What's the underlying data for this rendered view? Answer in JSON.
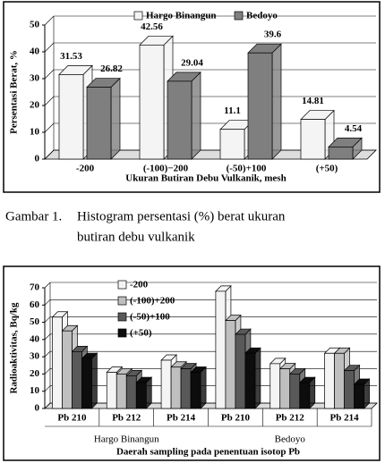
{
  "chart_data": [
    {
      "type": "bar",
      "ylabel": "Persentasi Berat, %",
      "xlabel": "Ukuran Butiran Debu Vulkanik, mesh",
      "categories": [
        "-200",
        "(-100)−200",
        "(-50)+100",
        "(+50)"
      ],
      "series": [
        {
          "name": "Hargo Binangun",
          "color": "#f4f4f4",
          "values": [
            31.53,
            42.56,
            11.1,
            14.81
          ]
        },
        {
          "name": "Bedoyo",
          "color": "#7f7f7f",
          "values": [
            26.82,
            29.04,
            39.6,
            4.54
          ]
        }
      ],
      "ylim": [
        0,
        50
      ],
      "yticks": [
        0,
        10,
        20,
        30,
        40,
        50
      ],
      "grid": true,
      "legend_layout": "horizontal",
      "show_values": true
    },
    {
      "type": "bar",
      "ylabel": "Radioaktivitas, Bq/kg",
      "xlabel": "Daerah sampling pada penentuan isotop Pb",
      "categories": [
        "Pb 210",
        "Pb 212",
        "Pb 214",
        "Pb 210",
        "Pb 212",
        "Pb 214"
      ],
      "groups": [
        "Hargo Binangun",
        "Bedoyo"
      ],
      "series": [
        {
          "name": "-200",
          "color": "#f4f4f4",
          "values": [
            53,
            21,
            28,
            68,
            26,
            32
          ]
        },
        {
          "name": "(-100)+200",
          "color": "#bfbfbf",
          "values": [
            45,
            20,
            24,
            51,
            23,
            32
          ]
        },
        {
          "name": "(-50)+100",
          "color": "#595959",
          "values": [
            33,
            19,
            23,
            43,
            20,
            22
          ]
        },
        {
          "name": "(+50)",
          "color": "#0d0d0d",
          "values": [
            29,
            15,
            21,
            32,
            15,
            14
          ]
        }
      ],
      "ylim": [
        0,
        70
      ],
      "yticks": [
        0,
        10,
        20,
        30,
        40,
        50,
        60,
        70
      ],
      "grid": true,
      "legend_layout": "vertical",
      "show_values": false
    }
  ],
  "caption": {
    "label": "Gambar 1.",
    "lines": [
      "Histogram persentasi (%) berat ukuran",
      "butiran debu vulkanik"
    ]
  }
}
